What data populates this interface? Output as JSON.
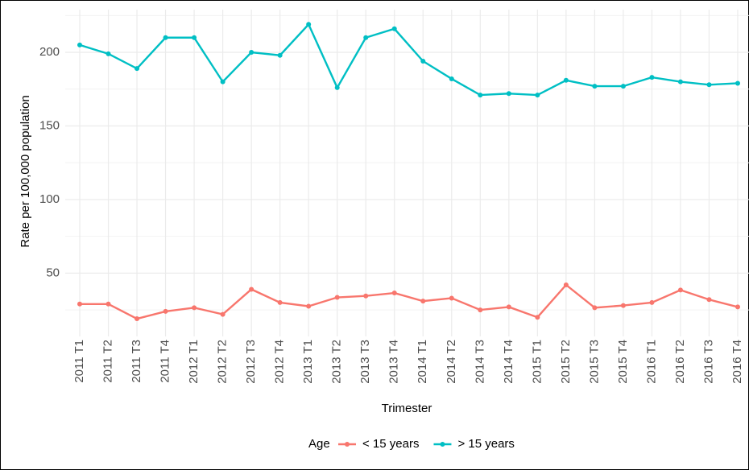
{
  "chart_data": {
    "type": "line",
    "x_label": "Trimester",
    "y_label": "Rate per 100,000 population",
    "legend_title": "Age",
    "legend_position": "bottom",
    "grid": true,
    "categories": [
      "2011 T1",
      "2011 T2",
      "2011 T3",
      "2011 T4",
      "2012 T1",
      "2012 T2",
      "2012 T3",
      "2012 T4",
      "2013 T1",
      "2013 T2",
      "2013 T3",
      "2013 T4",
      "2014 T1",
      "2014 T2",
      "2014 T3",
      "2014 T4",
      "2015 T1",
      "2015 T2",
      "2015 T3",
      "2015 T4",
      "2016 T1",
      "2016 T2",
      "2016 T3",
      "2016 T4"
    ],
    "series": [
      {
        "name": "< 15 years",
        "color": "#F8766D",
        "values": [
          29,
          29,
          19,
          24,
          26.5,
          22,
          39,
          30,
          27.5,
          33.5,
          34.5,
          36.5,
          31,
          33,
          25,
          27,
          20,
          42,
          26.5,
          28,
          30,
          38.5,
          32,
          27
        ]
      },
      {
        "name": "> 15 years",
        "color": "#00BFC4",
        "values": [
          205,
          199,
          189,
          210,
          210,
          180,
          200,
          198,
          219,
          176,
          210,
          216,
          194,
          182,
          171,
          172,
          171,
          181,
          177,
          177,
          183,
          180,
          178,
          179
        ]
      }
    ],
    "ylim": [
      7,
      229
    ],
    "yticks": [
      50,
      100,
      150,
      200
    ]
  }
}
